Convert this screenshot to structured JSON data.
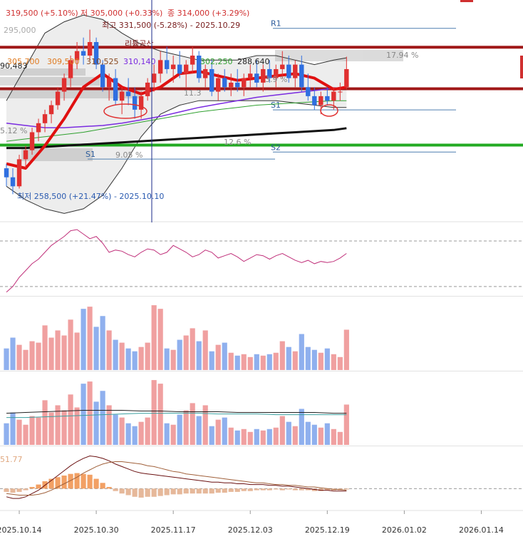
{
  "chart_data": [
    {
      "type": "candlestick",
      "header": [
        "319,500 (+5.10%)",
        "저 305,000 (+0.33%)",
        "종 314,000 (+3.29%)"
      ],
      "annotations": [
        "295,000",
        "최고 331,500 (-5.28%) - 2025.10.29",
        "리튬공산",
        "90,483",
        "305,700",
        "309,500",
        "310,525",
        "310,140",
        "302,250",
        "288,640",
        "17.94 %",
        "11.3",
        "3.9 %",
        "5.12 %",
        "12.6 %",
        "9.05 %",
        "최저 258,500 (+21.47%) - 2025.10.10"
      ],
      "xlim": [
        -3,
        78.5
      ],
      "ylim": [
        246600,
        343400
      ],
      "xticks": [
        {
          "value": 0,
          "label": "2025.10.14"
        },
        {
          "value": 12,
          "label": "2025.10.30"
        },
        {
          "value": 24,
          "label": "2025.11.17"
        },
        {
          "value": 36,
          "label": "2025.12.03"
        },
        {
          "value": 48,
          "label": "2025.12.19"
        },
        {
          "value": 60,
          "label": "2026.01.02"
        },
        {
          "value": 72,
          "label": "2026.01.14"
        }
      ],
      "x": [
        -2,
        -1,
        0,
        1,
        2,
        3,
        4,
        5,
        6,
        7,
        8,
        9,
        10,
        11,
        12,
        13,
        14,
        15,
        16,
        17,
        18,
        19,
        20,
        21,
        22,
        23,
        24,
        25,
        26,
        27,
        28,
        29,
        30,
        31,
        32,
        33,
        34,
        35,
        36,
        37,
        38,
        39,
        40,
        41,
        42,
        43,
        44,
        45,
        46,
        47,
        48,
        49,
        50,
        51
      ],
      "open": [
        270000,
        266000,
        262000,
        274000,
        278000,
        286000,
        290000,
        294000,
        298000,
        304000,
        310000,
        318000,
        322000,
        320000,
        326000,
        316000,
        306000,
        310000,
        300000,
        304000,
        302000,
        296000,
        302000,
        308000,
        312000,
        318000,
        314000,
        316000,
        312000,
        316000,
        320000,
        310000,
        314000,
        304000,
        310000,
        306000,
        308000,
        306000,
        310000,
        312000,
        308000,
        314000,
        310000,
        314000,
        316000,
        310000,
        316000,
        306000,
        302000,
        298000,
        302000,
        300000,
        304000,
        306000
      ],
      "high": [
        272000,
        270000,
        276000,
        280000,
        288000,
        292000,
        296000,
        300000,
        306000,
        312000,
        320000,
        326000,
        328000,
        331500,
        328000,
        318000,
        312000,
        314000,
        306000,
        310000,
        306000,
        304000,
        310000,
        316000,
        322000,
        324000,
        320000,
        322000,
        318000,
        324000,
        322000,
        316000,
        318000,
        312000,
        314000,
        312000,
        314000,
        312000,
        316000,
        318000,
        316000,
        318000,
        316000,
        322000,
        320000,
        318000,
        320000,
        312000,
        306000,
        304000,
        306000,
        306000,
        308000,
        319500
      ],
      "low": [
        262000,
        258500,
        261000,
        270000,
        276000,
        282000,
        286000,
        290000,
        296000,
        300000,
        306000,
        314000,
        316000,
        318000,
        314000,
        304000,
        300000,
        298000,
        294000,
        298000,
        292000,
        292000,
        300000,
        304000,
        308000,
        312000,
        308000,
        310000,
        306000,
        312000,
        308000,
        306000,
        302000,
        300000,
        304000,
        302000,
        304000,
        302000,
        306000,
        306000,
        304000,
        308000,
        306000,
        310000,
        308000,
        306000,
        304000,
        300000,
        296000,
        294000,
        298000,
        296000,
        300000,
        305000
      ],
      "close": [
        266000,
        262000,
        274000,
        278000,
        286000,
        290000,
        294000,
        298000,
        304000,
        310000,
        318000,
        322000,
        320000,
        326000,
        316000,
        306000,
        310000,
        300000,
        304000,
        302000,
        296000,
        302000,
        308000,
        312000,
        318000,
        314000,
        316000,
        312000,
        316000,
        320000,
        310000,
        314000,
        304000,
        310000,
        306000,
        308000,
        306000,
        310000,
        312000,
        308000,
        314000,
        310000,
        314000,
        316000,
        310000,
        316000,
        306000,
        302000,
        298000,
        302000,
        300000,
        304000,
        304000,
        314000
      ],
      "up_color": "#e03030",
      "down_color": "#2f6fe0",
      "overlay_x": [
        -2,
        1,
        4,
        7,
        10,
        13,
        16,
        19,
        22,
        25,
        28,
        31,
        34,
        37,
        40,
        43,
        46,
        49,
        51
      ],
      "band": {
        "color": "#9a9a9a",
        "upper": [
          300000,
          315000,
          330000,
          335000,
          338000,
          336000,
          330000,
          325000,
          322000,
          320000,
          318000,
          318000,
          318000,
          320000,
          320000,
          318000,
          316000,
          318000,
          319000
        ],
        "lower": [
          262000,
          256000,
          252000,
          250000,
          252000,
          258000,
          270000,
          284000,
          294000,
          298000,
          300000,
          300000,
          300000,
          300000,
          300000,
          299000,
          298000,
          297000,
          297000
        ]
      },
      "overlays": [
        {
          "color": "#111111",
          "values": [
            279000,
            279000,
            279500,
            280000,
            280500,
            281000,
            281500,
            282000,
            282500,
            283000,
            283500,
            284000,
            284500,
            285000,
            285500,
            286000,
            286500,
            287000,
            287800
          ]
        },
        {
          "color": "#2fa02f",
          "values": [
            282000,
            283000,
            284000,
            285000,
            286000,
            287500,
            289000,
            290500,
            292000,
            293500,
            295000,
            296000,
            297000,
            298000,
            298500,
            299000,
            299500,
            300000,
            300000
          ]
        },
        {
          "color": "#7a2be0",
          "values": [
            290000,
            289000,
            288000,
            288000,
            288500,
            289000,
            290000,
            291500,
            293000,
            295000,
            297000,
            298500,
            300000,
            301500,
            302500,
            303500,
            304500,
            305500,
            306000
          ]
        },
        {
          "color": "#e01010",
          "values": [
            272000,
            270000,
            280000,
            292000,
            306000,
            312000,
            306000,
            303000,
            306000,
            312000,
            313000,
            311000,
            309000,
            310000,
            311000,
            312000,
            310000,
            305000,
            306000
          ]
        }
      ],
      "levels": [
        {
          "value": 323700,
          "color": "#a01818"
        },
        {
          "value": 305300,
          "color": "#a01818"
        },
        {
          "value": 280300,
          "color": "#22aa22"
        }
      ],
      "pivots": [
        {
          "label": "R1",
          "value": 332100
        },
        {
          "label": "S1",
          "value": 295900
        },
        {
          "label": "S2",
          "value": 277200
        },
        {
          "label": "S1",
          "value": 274100
        }
      ]
    },
    {
      "type": "line",
      "color": "#c0307a",
      "ylim": [
        23,
        85
      ],
      "refs": [
        70,
        30
      ],
      "values": [
        25,
        30,
        38,
        44,
        50,
        54,
        60,
        66,
        70,
        74,
        79,
        80,
        76,
        72,
        74,
        68,
        60,
        62,
        61,
        58,
        56,
        60,
        63,
        62,
        58,
        60,
        66,
        63,
        60,
        56,
        58,
        62,
        60,
        55,
        57,
        59,
        56,
        52,
        55,
        58,
        57,
        54,
        57,
        59,
        56,
        53,
        51,
        53,
        50,
        52,
        51,
        52,
        55,
        59
      ]
    },
    {
      "type": "bar",
      "ylim": [
        0,
        100
      ],
      "color_by": "candle",
      "up_color": "#f0a0a0",
      "down_color": "#8fb0ee",
      "values": [
        30,
        45,
        35,
        28,
        40,
        38,
        62,
        45,
        55,
        48,
        70,
        52,
        85,
        88,
        60,
        75,
        55,
        42,
        38,
        30,
        26,
        32,
        38,
        90,
        85,
        30,
        28,
        42,
        48,
        58,
        40,
        55,
        26,
        35,
        38,
        24,
        20,
        22,
        18,
        22,
        20,
        22,
        24,
        40,
        32,
        26,
        50,
        32,
        28,
        24,
        30,
        22,
        18,
        56
      ]
    },
    {
      "type": "bar",
      "ylim": [
        0,
        100
      ],
      "color_by": "candle",
      "up_color": "#f0a0a0",
      "down_color": "#8fb0ee",
      "values": [
        30,
        45,
        35,
        28,
        40,
        38,
        62,
        45,
        55,
        48,
        70,
        52,
        85,
        88,
        60,
        75,
        55,
        42,
        38,
        30,
        26,
        32,
        38,
        90,
        85,
        30,
        28,
        42,
        48,
        58,
        40,
        55,
        26,
        35,
        38,
        24,
        20,
        22,
        18,
        22,
        20,
        22,
        24,
        40,
        32,
        26,
        50,
        32,
        28,
        24,
        30,
        22,
        18,
        56
      ],
      "series": [
        {
          "color": "#222222",
          "x": [
            -2,
            1,
            4,
            7,
            10,
            13,
            16,
            19,
            22,
            25,
            28,
            31,
            34,
            37,
            40,
            43,
            46,
            49,
            51
          ],
          "values": [
            44,
            45,
            46,
            47,
            48,
            48,
            48,
            47,
            47,
            46,
            46,
            46,
            45,
            45,
            45,
            45,
            45,
            44,
            44
          ]
        },
        {
          "color": "#3aa0a0",
          "x": [
            -2,
            1,
            4,
            7,
            10,
            13,
            16,
            19,
            22,
            25,
            28,
            31,
            34,
            37,
            40,
            43,
            46,
            49,
            51
          ],
          "values": [
            38,
            38,
            39,
            40,
            41,
            42,
            43,
            44,
            44,
            44,
            44,
            43,
            43,
            43,
            42,
            42,
            42,
            42,
            42
          ]
        }
      ]
    },
    {
      "type": "bar",
      "ylim": [
        -25,
        50
      ],
      "color_by": "sign",
      "up_color": "#f2a064",
      "down_color": "#e6b89a",
      "label": "51.77",
      "refs": [
        0
      ],
      "values": [
        -4,
        -5,
        -4,
        -2,
        2,
        5,
        9,
        12,
        14,
        16,
        18,
        19,
        18,
        17,
        12,
        7,
        2,
        -3,
        -6,
        -8,
        -10,
        -11,
        -10,
        -10,
        -9,
        -8,
        -7,
        -7,
        -6,
        -6,
        -6,
        -6,
        -6,
        -5,
        -5,
        -4,
        -4,
        -3,
        -3,
        -2,
        -2,
        -2,
        -1,
        -2,
        -1,
        -2,
        -2,
        -2,
        -3,
        -3,
        -2,
        -2,
        -2,
        -1
      ],
      "series": [
        {
          "color": "#6a1010",
          "values": [
            -10,
            -12,
            -12,
            -10,
            -6,
            -2,
            4,
            10,
            16,
            22,
            28,
            33,
            37,
            40,
            39,
            37,
            34,
            30,
            27,
            24,
            21,
            19,
            18,
            17,
            16,
            15,
            14,
            13,
            12,
            11,
            10,
            9,
            8,
            8,
            7,
            7,
            6,
            6,
            5,
            5,
            5,
            4,
            4,
            3,
            3,
            2,
            1,
            0,
            -1,
            -2,
            -2,
            -3,
            -3,
            -3
          ]
        },
        {
          "color": "#a0603a",
          "values": [
            -6,
            -7,
            -8,
            -8,
            -8,
            -7,
            -5,
            -2,
            2,
            6,
            10,
            14,
            19,
            23,
            27,
            30,
            32,
            33,
            33,
            32,
            31,
            30,
            28,
            27,
            25,
            23,
            21,
            20,
            18,
            17,
            16,
            15,
            14,
            13,
            12,
            11,
            10,
            9,
            8,
            7,
            7,
            6,
            5,
            5,
            4,
            4,
            3,
            2,
            2,
            1,
            0,
            -1,
            -1,
            -2
          ]
        }
      ]
    }
  ]
}
